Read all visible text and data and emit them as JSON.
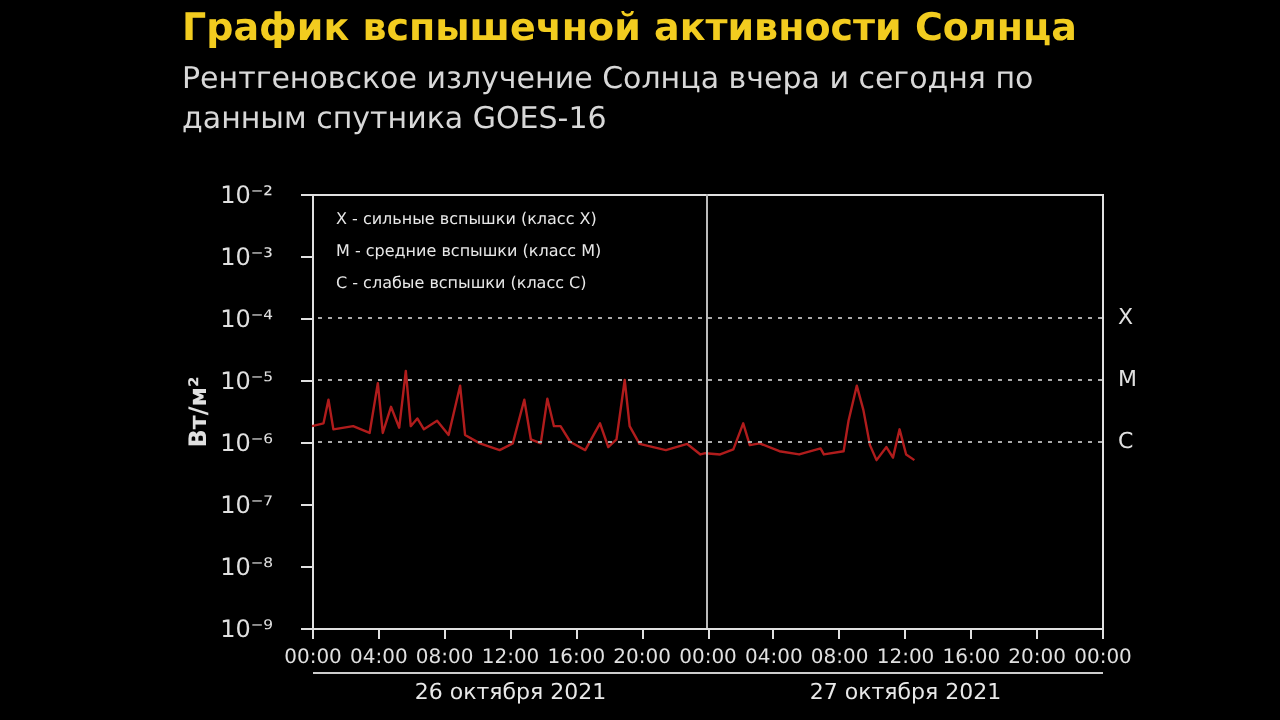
{
  "chart_data": {
    "type": "line",
    "title": "График вспышечной активности Солнца",
    "subtitle": "Рентгеновское излучение Солнца вчера и сегодня по данным спутника GOES-16",
    "ylabel": "Вт/м²",
    "x": [
      "2021-10-26T00:00",
      "2021-10-26T00:42",
      "2021-10-26T01:00",
      "2021-10-26T01:18",
      "2021-10-26T02:30",
      "2021-10-26T03:30",
      "2021-10-26T04:00",
      "2021-10-26T04:18",
      "2021-10-26T04:48",
      "2021-10-26T05:18",
      "2021-10-26T05:42",
      "2021-10-26T06:00",
      "2021-10-26T06:24",
      "2021-10-26T06:48",
      "2021-10-26T07:36",
      "2021-10-26T08:18",
      "2021-10-26T09:00",
      "2021-10-26T09:18",
      "2021-10-26T10:12",
      "2021-10-26T11:24",
      "2021-10-26T12:12",
      "2021-10-26T12:54",
      "2021-10-26T13:18",
      "2021-10-26T13:54",
      "2021-10-26T14:18",
      "2021-10-26T14:42",
      "2021-10-26T15:06",
      "2021-10-26T15:42",
      "2021-10-26T16:36",
      "2021-10-26T17:30",
      "2021-10-26T18:00",
      "2021-10-26T18:30",
      "2021-10-26T19:00",
      "2021-10-26T19:18",
      "2021-10-26T19:54",
      "2021-10-26T21:30",
      "2021-10-26T22:48",
      "2021-10-26T23:36",
      "2021-10-26T23:54",
      "2021-10-27T00:48",
      "2021-10-27T01:36",
      "2021-10-27T02:12",
      "2021-10-27T02:36",
      "2021-10-27T03:12",
      "2021-10-27T04:24",
      "2021-10-27T05:36",
      "2021-10-27T06:54",
      "2021-10-27T07:06",
      "2021-10-27T08:18",
      "2021-10-27T08:36",
      "2021-10-27T09:06",
      "2021-10-27T09:30",
      "2021-10-27T09:54",
      "2021-10-27T10:18",
      "2021-10-27T10:54",
      "2021-10-27T11:18",
      "2021-10-27T11:42",
      "2021-10-27T12:06",
      "2021-10-27T12:36"
    ],
    "series": [
      {
        "color": "#b01c1c",
        "values": [
          1.8e-06,
          2e-06,
          4.8e-06,
          1.6e-06,
          1.8e-06,
          1.4e-06,
          8.9e-06,
          1.4e-06,
          3.7e-06,
          1.7e-06,
          1.4e-05,
          1.8e-06,
          2.4e-06,
          1.6e-06,
          2.2e-06,
          1.3e-06,
          8.1e-06,
          1.3e-06,
          9.5e-07,
          7.4e-07,
          9.5e-07,
          4.8e-06,
          1.1e-06,
          9.5e-07,
          5e-06,
          1.8e-06,
          1.8e-06,
          1e-06,
          7.4e-07,
          2e-06,
          8.3e-07,
          1.1e-06,
          1e-05,
          1.8e-06,
          9.3e-07,
          7.4e-07,
          9.3e-07,
          6.3e-07,
          6.6e-07,
          6.3e-07,
          7.6e-07,
          2e-06,
          8.9e-07,
          9.5e-07,
          7.1e-07,
          6.3e-07,
          7.9e-07,
          6.3e-07,
          7.1e-07,
          2.2e-06,
          8.1e-06,
          3.3e-06,
          8.9e-07,
          5.1e-07,
          8.3e-07,
          5.6e-07,
          1.6e-06,
          6.3e-07,
          5.1e-07
        ]
      }
    ],
    "xlim": [
      "2021-10-26T00:00",
      "2021-10-28T00:00"
    ],
    "xticks": [
      {
        "value": "2021-10-26T00:00",
        "label": "00:00"
      },
      {
        "value": "2021-10-26T04:00",
        "label": "04:00"
      },
      {
        "value": "2021-10-26T08:00",
        "label": "08:00"
      },
      {
        "value": "2021-10-26T12:00",
        "label": "12:00"
      },
      {
        "value": "2021-10-26T16:00",
        "label": "16:00"
      },
      {
        "value": "2021-10-26T20:00",
        "label": "20:00"
      },
      {
        "value": "2021-10-27T00:00",
        "label": "00:00"
      },
      {
        "value": "2021-10-27T04:00",
        "label": "04:00"
      },
      {
        "value": "2021-10-27T08:00",
        "label": "08:00"
      },
      {
        "value": "2021-10-27T12:00",
        "label": "12:00"
      },
      {
        "value": "2021-10-27T16:00",
        "label": "16:00"
      },
      {
        "value": "2021-10-27T20:00",
        "label": "20:00"
      },
      {
        "value": "2021-10-28T00:00",
        "label": "00:00"
      }
    ],
    "log": "y",
    "ylim": [
      1e-09,
      0.01
    ],
    "yticks": [
      {
        "value": 1e-09,
        "label": "10⁻⁹"
      },
      {
        "value": 1e-08,
        "label": "10⁻⁸"
      },
      {
        "value": 1e-07,
        "label": "10⁻⁷"
      },
      {
        "value": 1e-06,
        "label": "10⁻⁶"
      },
      {
        "value": 1e-05,
        "label": "10⁻⁵"
      },
      {
        "value": 0.0001,
        "label": "10⁻⁴"
      },
      {
        "value": 0.001,
        "label": "10⁻³"
      },
      {
        "value": 0.01,
        "label": "10⁻²"
      }
    ],
    "ref_lines": [
      {
        "axis": "y",
        "value": 0.0001,
        "label": "X",
        "color": "#aaaaaa",
        "line_style": "dotted"
      },
      {
        "axis": "y",
        "value": 1e-05,
        "label": "M",
        "color": "#aaaaaa",
        "line_style": "dotted"
      },
      {
        "axis": "y",
        "value": 1e-06,
        "label": "C",
        "color": "#aaaaaa",
        "line_style": "dotted"
      },
      {
        "axis": "x",
        "value": "2021-10-27T00:00",
        "color": "#bbbbbb",
        "line_style": "solid"
      }
    ],
    "annotations": [
      "X - сильные вспышки (класс X)",
      "M - средние вспышки (класс M)",
      "C - слабые вспышки (класс C)"
    ],
    "x2lim": [
      "2021-10-26T00:00",
      "2021-10-28T00:00"
    ],
    "x2ticks": [
      {
        "value": "2021-10-26T12:00",
        "label": "26 октября 2021"
      },
      {
        "value": "2021-10-27T12:00",
        "label": "27 октября 2021"
      }
    ]
  }
}
